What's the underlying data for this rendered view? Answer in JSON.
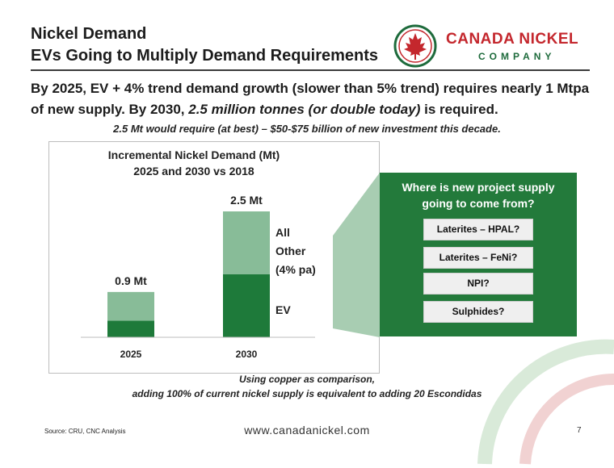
{
  "slide": {
    "title_line1": "Nickel Demand",
    "title_line2": "EVs Going to Multiply Demand Requirements",
    "logo": {
      "name": "CANADA NICKEL",
      "company": "COMPANY"
    },
    "lead_part1": "By 2025, EV + 4% trend demand growth (slower than 5% trend) requires nearly 1 Mtpa of new supply.  By 2030, ",
    "lead_em": "2.5 million tonnes (or double today)",
    "lead_part2": " is required.",
    "sublead": "2.5 Mt would require (at best) – $50-$75 billion of new investment this decade.",
    "footnote_line1": "Using copper as comparison,",
    "footnote_line2": "adding 100% of current nickel supply is equivalent to adding 20 Escondidas",
    "source": "Source: CRU, CNC Analysis",
    "website": "www.canadanickel.com",
    "page_number": "7"
  },
  "callout": {
    "question_line1": "Where is new project supply",
    "question_line2": "going to come from?",
    "options": [
      "Laterites – HPAL?",
      "Laterites – FeNi?",
      "NPI?",
      "Sulphides?"
    ]
  },
  "colors": {
    "dark_green": "#1e7a3a",
    "light_green": "#88bc98",
    "callout_green": "#237a3b",
    "brand_red": "#c4272d"
  },
  "chart_data": {
    "type": "bar",
    "stacked": true,
    "title": "Incremental Nickel Demand (Mt)",
    "subtitle": "2025 and 2030 vs 2018",
    "categories": [
      "2025",
      "2030"
    ],
    "series": [
      {
        "name": "EV",
        "values": [
          0.33,
          1.25
        ],
        "color": "#1e7a3a"
      },
      {
        "name": "All Other (4% pa)",
        "values": [
          0.57,
          1.25
        ],
        "color": "#88bc98"
      }
    ],
    "totals": [
      0.9,
      2.5
    ],
    "total_labels": [
      "0.9 Mt",
      "2.5 Mt"
    ],
    "ylim": [
      0,
      2.5
    ],
    "grid": false,
    "legend_labels": {
      "other_line1": "All",
      "other_line2": "Other",
      "other_line3": "(4% pa)",
      "ev": "EV"
    }
  }
}
